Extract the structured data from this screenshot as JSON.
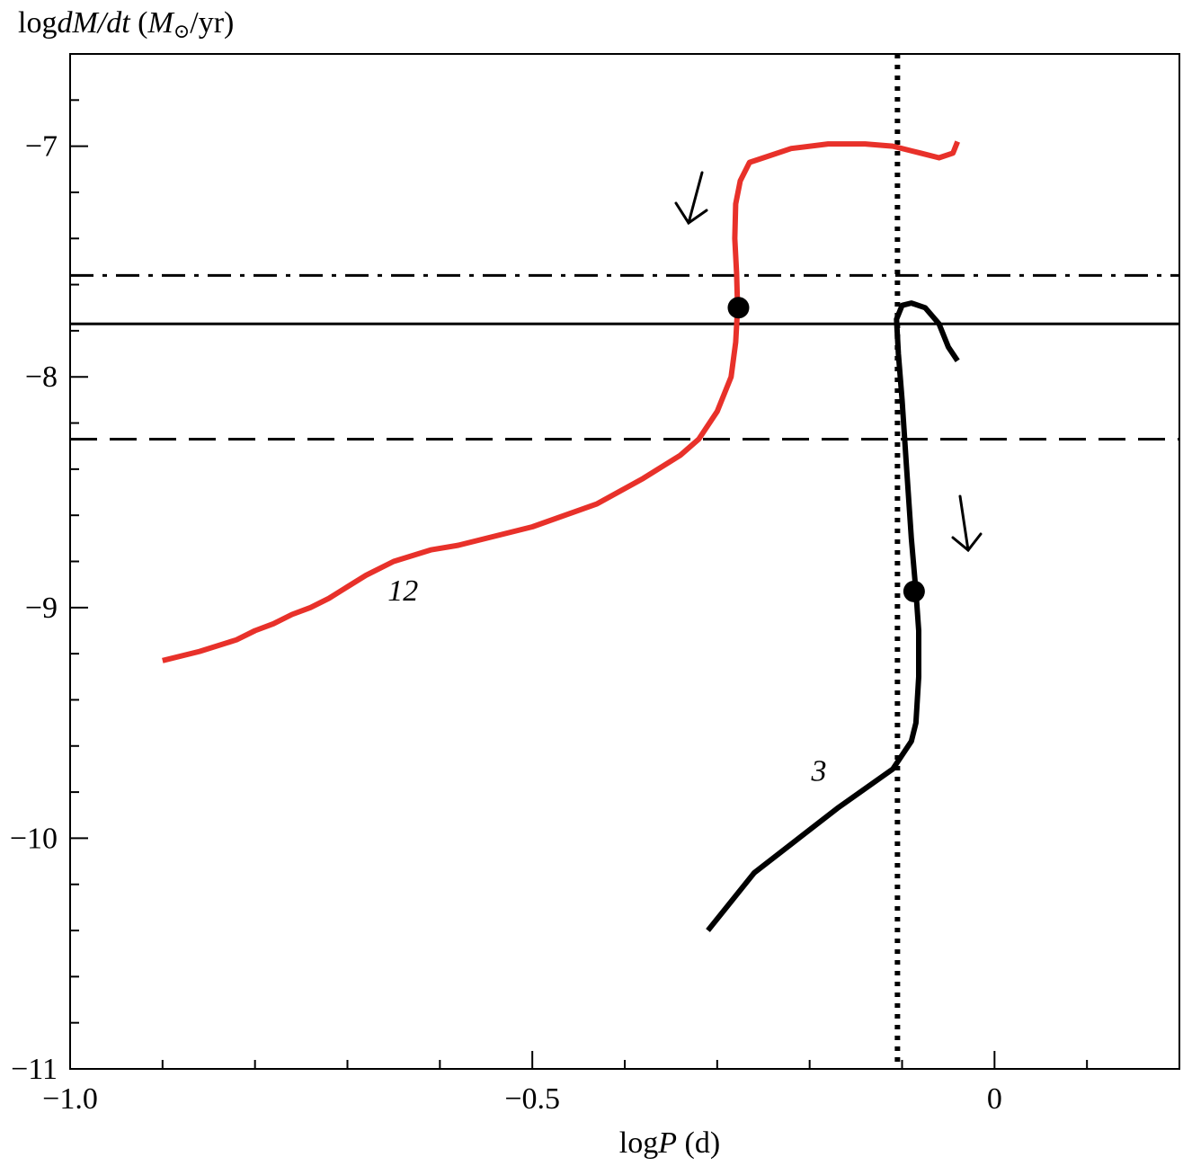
{
  "chart_data": {
    "type": "line",
    "title": "",
    "xlabel": {
      "prefix": "log",
      "var": "P",
      "unit": " (d)"
    },
    "ylabel": {
      "prefix": "log",
      "var": "dM/dt",
      "unit_open": " (",
      "unit_var": "M",
      "unit_sub": "⊙",
      "unit_close": "/yr)"
    },
    "xlim": [
      -1.0,
      0.2
    ],
    "ylim": [
      -11,
      -6.6
    ],
    "x_ticks": [
      -1.0,
      -0.5,
      0
    ],
    "x_tick_labels": [
      "−1.0",
      "−0.5",
      "0"
    ],
    "x_minor_step": 0.1,
    "y_ticks": [
      -7,
      -8,
      -9,
      -10,
      -11
    ],
    "y_tick_labels": [
      "−7",
      "−8",
      "−9",
      "−10",
      "−11"
    ],
    "y_minor_step": 0.2,
    "grid": false,
    "series": [
      {
        "name": "12",
        "color": "#e8312a",
        "points": [
          [
            -0.9,
            -9.23
          ],
          [
            -0.86,
            -9.19
          ],
          [
            -0.82,
            -9.14
          ],
          [
            -0.8,
            -9.1
          ],
          [
            -0.78,
            -9.07
          ],
          [
            -0.76,
            -9.03
          ],
          [
            -0.74,
            -9.0
          ],
          [
            -0.72,
            -8.96
          ],
          [
            -0.7,
            -8.91
          ],
          [
            -0.68,
            -8.86
          ],
          [
            -0.65,
            -8.8
          ],
          [
            -0.61,
            -8.75
          ],
          [
            -0.58,
            -8.73
          ],
          [
            -0.5,
            -8.65
          ],
          [
            -0.43,
            -8.55
          ],
          [
            -0.38,
            -8.44
          ],
          [
            -0.34,
            -8.34
          ],
          [
            -0.32,
            -8.27
          ],
          [
            -0.3,
            -8.15
          ],
          [
            -0.285,
            -8.0
          ],
          [
            -0.28,
            -7.85
          ],
          [
            -0.278,
            -7.7
          ],
          [
            -0.279,
            -7.55
          ],
          [
            -0.281,
            -7.4
          ],
          [
            -0.28,
            -7.25
          ],
          [
            -0.275,
            -7.15
          ],
          [
            -0.265,
            -7.07
          ],
          [
            -0.25,
            -7.05
          ],
          [
            -0.22,
            -7.01
          ],
          [
            -0.18,
            -6.99
          ],
          [
            -0.14,
            -6.99
          ],
          [
            -0.11,
            -7.0
          ],
          [
            -0.08,
            -7.03
          ],
          [
            -0.06,
            -7.05
          ],
          [
            -0.045,
            -7.03
          ],
          [
            -0.04,
            -6.98
          ]
        ],
        "marker": [
          -0.277,
          -7.7
        ]
      },
      {
        "name": "3",
        "color": "#000000",
        "points": [
          [
            -0.31,
            -10.4
          ],
          [
            -0.26,
            -10.15
          ],
          [
            -0.17,
            -9.87
          ],
          [
            -0.11,
            -9.7
          ],
          [
            -0.09,
            -9.58
          ],
          [
            -0.085,
            -9.5
          ],
          [
            -0.082,
            -9.3
          ],
          [
            -0.082,
            -9.1
          ],
          [
            -0.085,
            -8.93
          ],
          [
            -0.09,
            -8.7
          ],
          [
            -0.095,
            -8.4
          ],
          [
            -0.1,
            -8.1
          ],
          [
            -0.104,
            -7.9
          ],
          [
            -0.106,
            -7.75
          ],
          [
            -0.1,
            -7.69
          ],
          [
            -0.09,
            -7.68
          ],
          [
            -0.075,
            -7.7
          ],
          [
            -0.06,
            -7.77
          ],
          [
            -0.05,
            -7.87
          ],
          [
            -0.04,
            -7.93
          ]
        ],
        "marker": [
          -0.087,
          -8.93
        ]
      }
    ],
    "reference_lines": [
      {
        "orientation": "horizontal",
        "y": -7.56,
        "style": "dashdot"
      },
      {
        "orientation": "horizontal",
        "y": -7.77,
        "style": "solid"
      },
      {
        "orientation": "horizontal",
        "y": -8.27,
        "style": "dashed"
      },
      {
        "orientation": "vertical",
        "x": -0.105,
        "style": "dotted"
      }
    ],
    "annotations": [
      {
        "type": "arrow",
        "for": "12"
      },
      {
        "type": "arrow",
        "for": "3"
      }
    ]
  }
}
